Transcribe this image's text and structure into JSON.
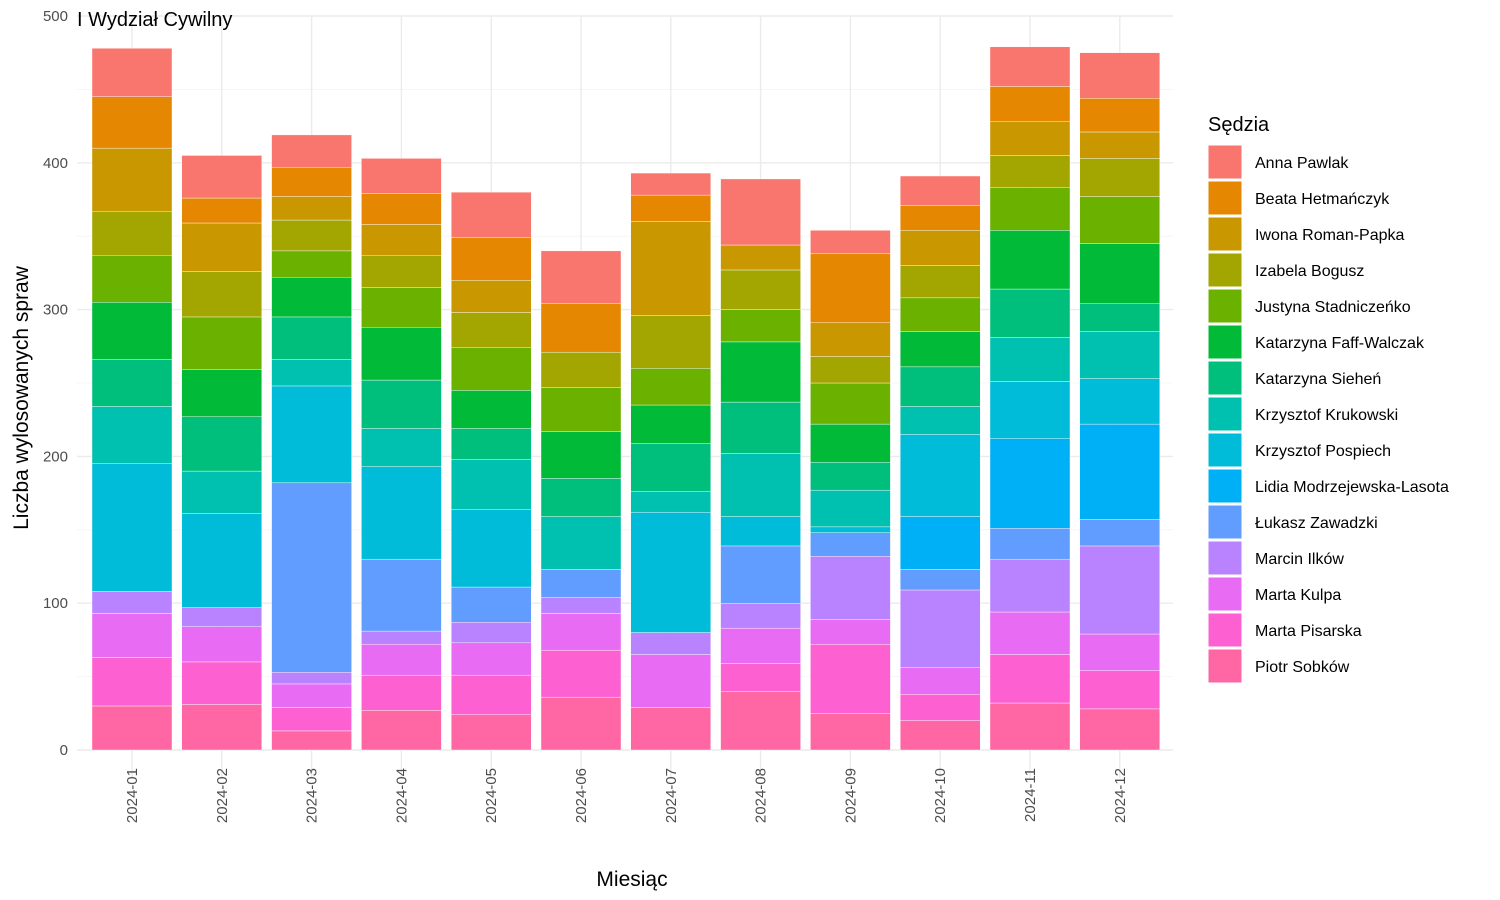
{
  "chart_data": {
    "type": "bar",
    "stacked": true,
    "title": "I Wydział Cywilny",
    "xlabel": "Miesiąc",
    "ylabel": "Liczba wylosowanych spraw",
    "ylim": [
      0,
      500
    ],
    "yticks": [
      0,
      100,
      200,
      300,
      400,
      500
    ],
    "grid": true,
    "legend_title": "Sędzia",
    "legend_position": "right",
    "categories": [
      "2024-01",
      "2024-02",
      "2024-03",
      "2024-04",
      "2024-05",
      "2024-06",
      "2024-07",
      "2024-08",
      "2024-09",
      "2024-10",
      "2024-11",
      "2024-12"
    ],
    "series": [
      {
        "name": "Anna Pawlak",
        "color": "#F8766D",
        "values": [
          33,
          29,
          22,
          24,
          31,
          36,
          15,
          45,
          16,
          20,
          27,
          31
        ]
      },
      {
        "name": "Beata Hetmańczyk",
        "color": "#E58700",
        "values": [
          35,
          17,
          20,
          21,
          29,
          33,
          18,
          0,
          47,
          17,
          24,
          23
        ]
      },
      {
        "name": "Iwona Roman-Papka",
        "color": "#C99800",
        "values": [
          43,
          33,
          16,
          21,
          22,
          0,
          64,
          17,
          23,
          24,
          23,
          18
        ]
      },
      {
        "name": "Izabela Bogusz",
        "color": "#A3A500",
        "values": [
          30,
          31,
          21,
          22,
          24,
          24,
          36,
          27,
          18,
          22,
          22,
          26
        ]
      },
      {
        "name": "Justyna Stadniczeńko",
        "color": "#6BB100",
        "values": [
          32,
          36,
          18,
          27,
          29,
          30,
          25,
          22,
          28,
          23,
          29,
          32
        ]
      },
      {
        "name": "Katarzyna Faff-Walczak",
        "color": "#00BA38",
        "values": [
          39,
          32,
          27,
          36,
          26,
          32,
          26,
          41,
          26,
          24,
          40,
          41
        ]
      },
      {
        "name": "Katarzyna Sieheń",
        "color": "#00BF7D",
        "values": [
          32,
          37,
          29,
          33,
          21,
          26,
          33,
          35,
          19,
          27,
          33,
          19
        ]
      },
      {
        "name": "Krzysztof Krukowski",
        "color": "#00C0AF",
        "values": [
          39,
          29,
          18,
          26,
          34,
          36,
          14,
          43,
          25,
          19,
          30,
          32
        ]
      },
      {
        "name": "Krzysztof Pospiech",
        "color": "#00BCD8",
        "values": [
          87,
          64,
          66,
          63,
          53,
          0,
          82,
          20,
          4,
          56,
          39,
          31
        ]
      },
      {
        "name": "Lidia Modrzejewska-Lasota",
        "color": "#00B0F6",
        "values": [
          0,
          0,
          0,
          0,
          0,
          0,
          0,
          0,
          0,
          36,
          61,
          65
        ]
      },
      {
        "name": "Łukasz Zawadzki",
        "color": "#619CFF",
        "values": [
          0,
          0,
          129,
          49,
          24,
          19,
          0,
          39,
          16,
          14,
          21,
          18
        ]
      },
      {
        "name": "Marcin Ilków",
        "color": "#B983FF",
        "values": [
          15,
          13,
          8,
          9,
          14,
          11,
          15,
          17,
          43,
          53,
          36,
          60
        ]
      },
      {
        "name": "Marta Kulpa",
        "color": "#E76BF3",
        "values": [
          30,
          24,
          16,
          21,
          22,
          25,
          36,
          24,
          17,
          18,
          29,
          25
        ]
      },
      {
        "name": "Marta Pisarska",
        "color": "#FD61D1",
        "values": [
          33,
          29,
          16,
          24,
          27,
          32,
          0,
          19,
          47,
          18,
          33,
          26
        ]
      },
      {
        "name": "Piotr Sobków",
        "color": "#FF67A4",
        "values": [
          30,
          31,
          13,
          27,
          24,
          36,
          29,
          40,
          25,
          20,
          32,
          28
        ]
      }
    ]
  }
}
